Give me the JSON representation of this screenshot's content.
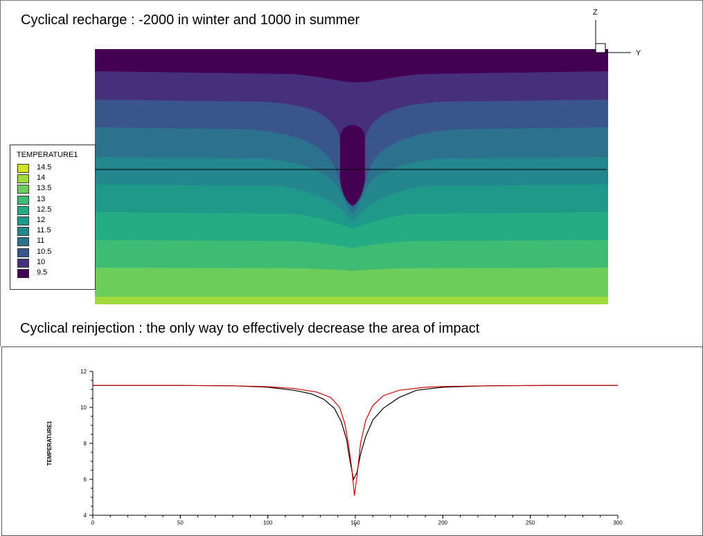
{
  "top_panel": {
    "title": "Cyclical recharge : -2000 in winter and 1000 in summer",
    "subtitle": "Cyclical reinjection : the only way to effectively decrease the area of impact",
    "axes_labels": {
      "z": "Z",
      "y": "Y"
    },
    "legend": {
      "title": "TEMPERATURE1",
      "items": [
        {
          "label": "14.5",
          "color": "#d5e21f"
        },
        {
          "label": "14",
          "color": "#9fda3a"
        },
        {
          "label": "13.5",
          "color": "#6ccd5a"
        },
        {
          "label": "13",
          "color": "#3fbc73"
        },
        {
          "label": "12.5",
          "color": "#25ac82"
        },
        {
          "label": "12",
          "color": "#1f9a8a"
        },
        {
          "label": "11.5",
          "color": "#24878e"
        },
        {
          "label": "11",
          "color": "#2c728e"
        },
        {
          "label": "10.5",
          "color": "#3a548c"
        },
        {
          "label": "10",
          "color": "#462f7b"
        },
        {
          "label": "9.5",
          "color": "#440154"
        }
      ]
    }
  },
  "chart_data": {
    "type": "line",
    "xlabel": "Y",
    "ylabel": "TEMPERATURE1",
    "xlim": [
      0,
      300
    ],
    "ylim": [
      4,
      12
    ],
    "xticks": [
      0,
      50,
      100,
      150,
      200,
      250,
      300
    ],
    "yticks": [
      4,
      6,
      8,
      10,
      12
    ],
    "series": [
      {
        "color": "#000000",
        "x": [
          0,
          50,
          80,
          100,
          115,
          125,
          132,
          138,
          142,
          145,
          147,
          149,
          151,
          153,
          156,
          160,
          166,
          175,
          185,
          200,
          225,
          260,
          300
        ],
        "y": [
          11.22,
          11.22,
          11.2,
          11.12,
          10.95,
          10.75,
          10.45,
          9.95,
          9.2,
          8.2,
          7.0,
          6.0,
          6.4,
          7.4,
          8.4,
          9.3,
          9.95,
          10.55,
          10.95,
          11.12,
          11.2,
          11.22,
          11.22
        ]
      },
      {
        "color": "#cc0000",
        "x": [
          0,
          50,
          80,
          100,
          115,
          128,
          136,
          141,
          144,
          146,
          148,
          149.5,
          151,
          153,
          156,
          160,
          166,
          175,
          190,
          200,
          225,
          260,
          300
        ],
        "y": [
          11.22,
          11.22,
          11.2,
          11.15,
          11.05,
          10.85,
          10.55,
          10.0,
          9.1,
          8.0,
          6.6,
          5.1,
          6.2,
          8.0,
          9.3,
          10.1,
          10.65,
          10.95,
          11.12,
          11.16,
          11.2,
          11.22,
          11.22
        ]
      }
    ]
  }
}
